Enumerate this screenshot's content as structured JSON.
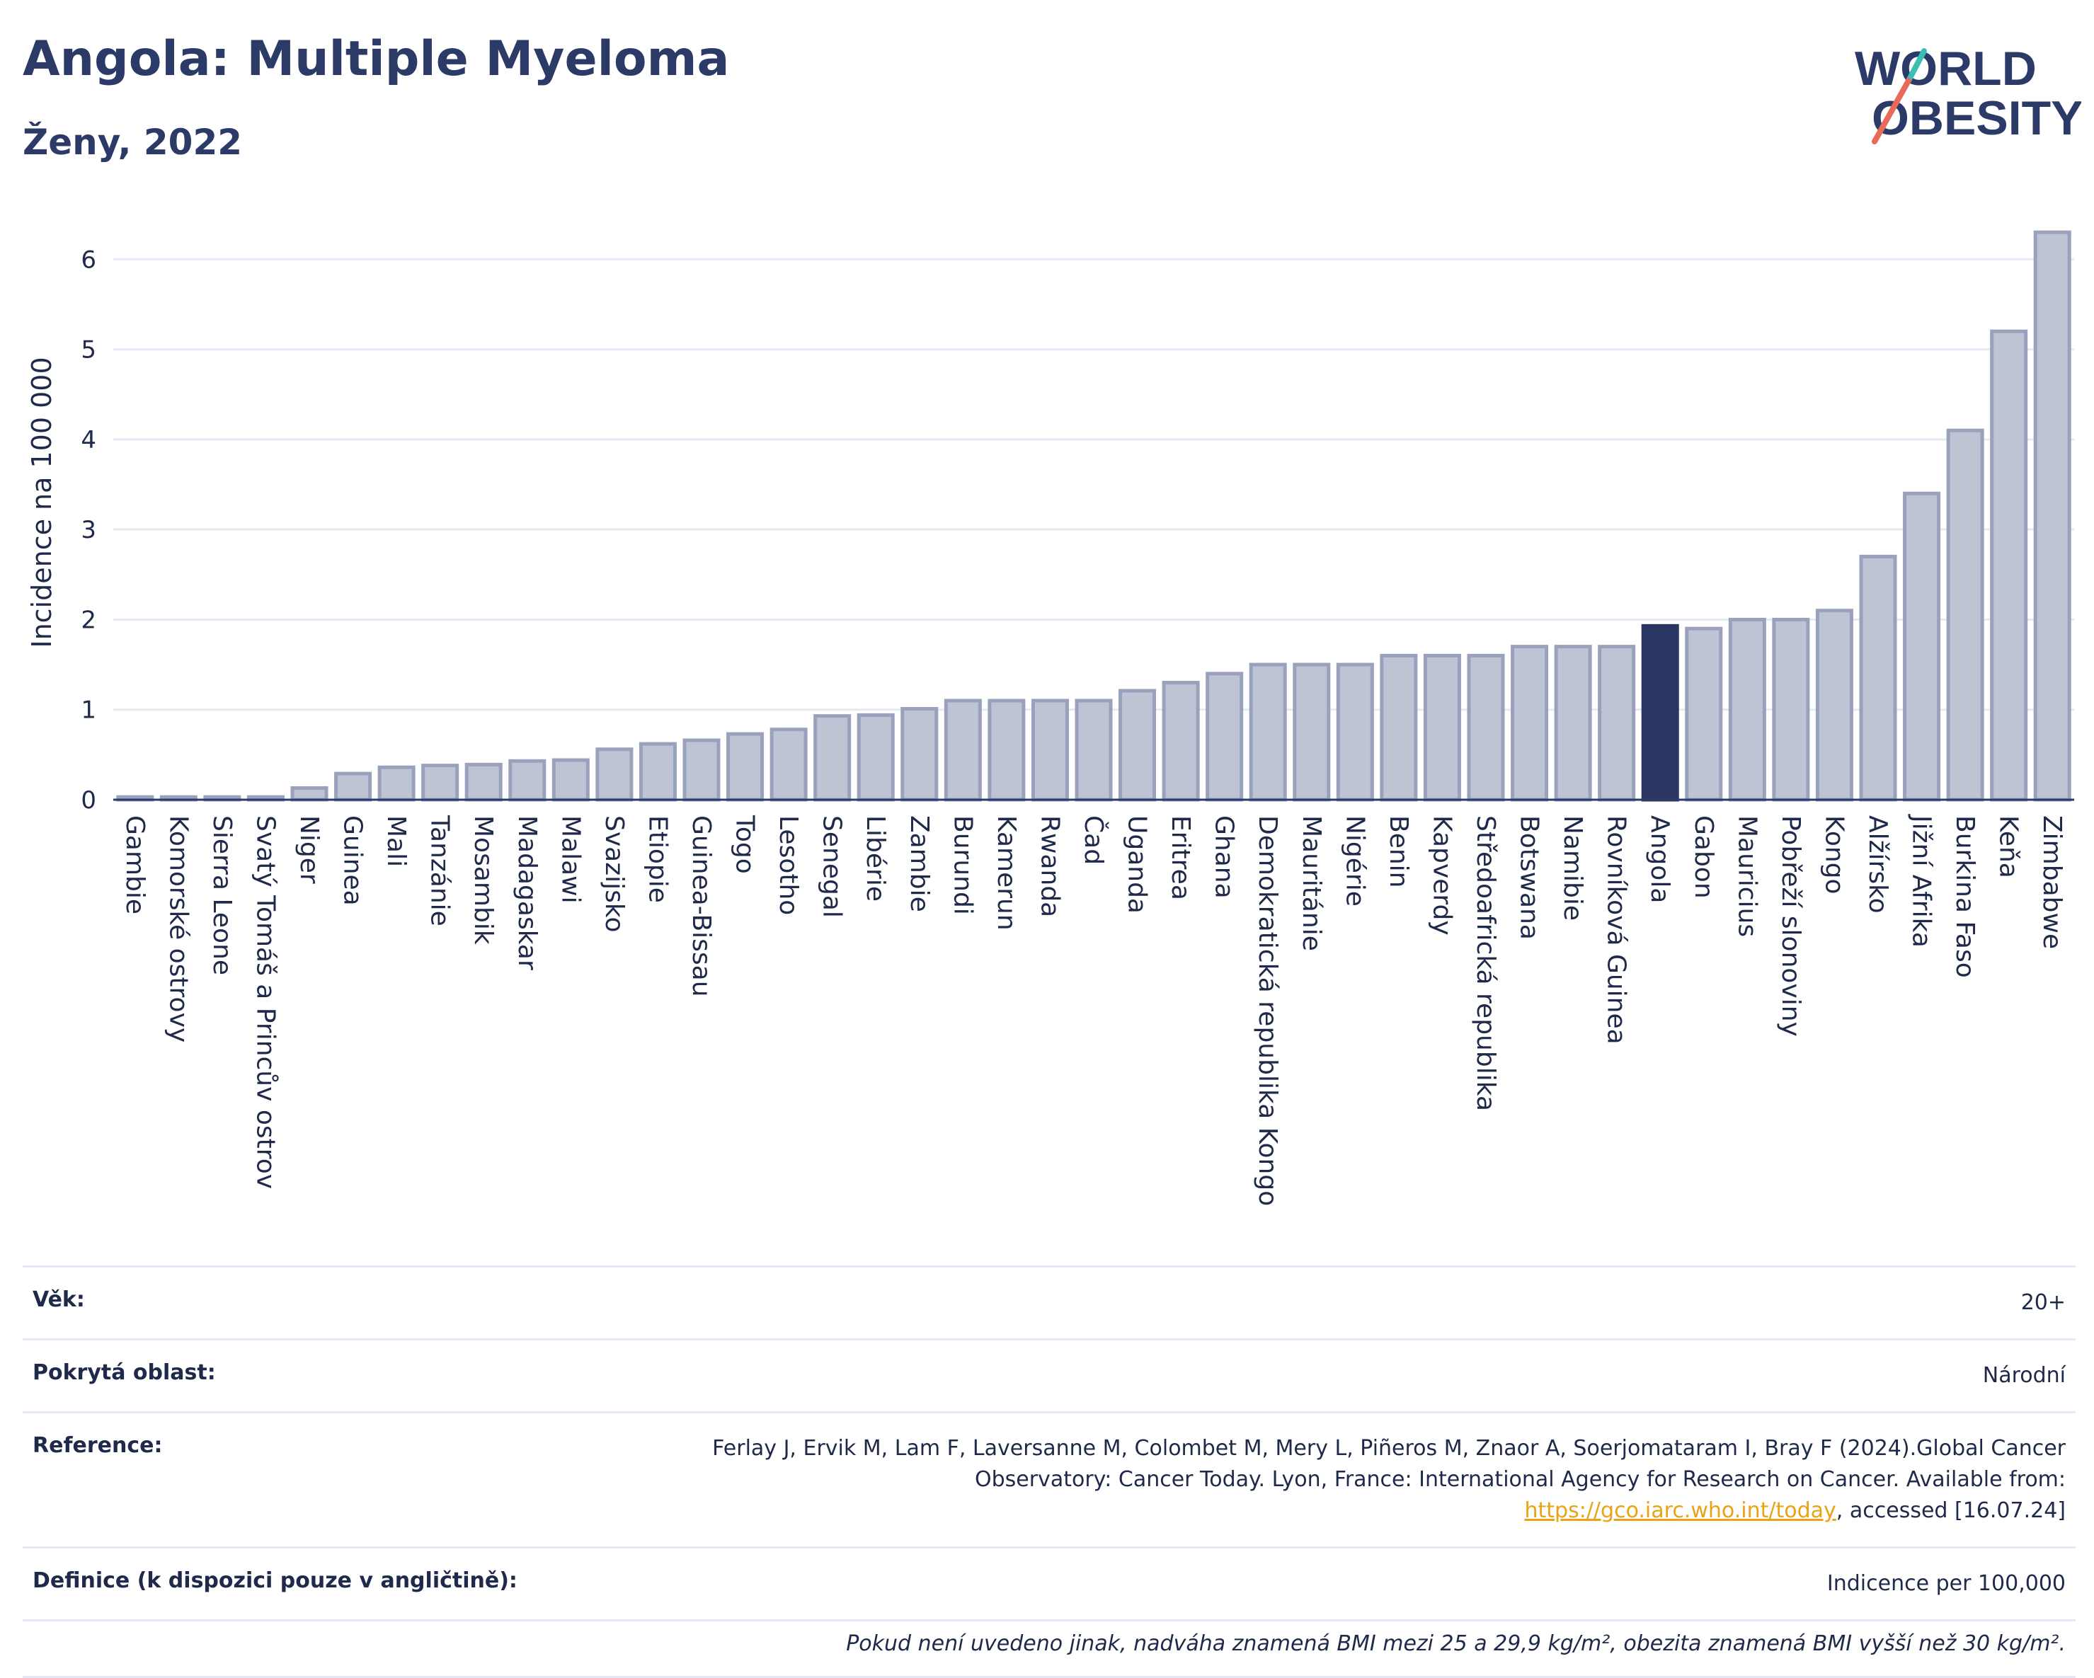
{
  "header": {
    "title": "Angola: Multiple Myeloma",
    "subtitle": "Ženy, 2022"
  },
  "logo": {
    "line1": "WORLD",
    "line2": "OBESITY"
  },
  "colors": {
    "highlight": "#2b3562",
    "bar": "#bfc4d4",
    "bar_stroke": "#9aa1bd",
    "axis": "#2b3a67",
    "grid": "#e6e9f3"
  },
  "chart_data": {
    "type": "bar",
    "ylabel": "Incidence na 100 000",
    "ylim": [
      0,
      6.6
    ],
    "yticks": [
      0,
      1,
      2,
      3,
      4,
      5,
      6
    ],
    "grid": true,
    "highlight": "Angola",
    "categories": [
      "Gambie",
      "Komorské ostrovy",
      "Sierra Leone",
      "Svatý Tomáš a Princův ostrov",
      "Niger",
      "Guinea",
      "Mali",
      "Tanzánie",
      "Mosambik",
      "Madagaskar",
      "Malawi",
      "Svazijsko",
      "Etiopie",
      "Guinea-Bissau",
      "Togo",
      "Lesotho",
      "Senegal",
      "Libérie",
      "Zambie",
      "Burundi",
      "Kamerun",
      "Rwanda",
      "Čad",
      "Uganda",
      "Eritrea",
      "Ghana",
      "Demokratická republika Kongo",
      "Mauritánie",
      "Nigérie",
      "Benin",
      "Kapverdy",
      "Středoafrická republika",
      "Botswana",
      "Namibie",
      "Rovníková Guinea",
      "Angola",
      "Gabon",
      "Mauricius",
      "Pobřeží slonoviny",
      "Kongo",
      "Alžírsko",
      "Jižní Afrika",
      "Burkina Faso",
      "Keňa",
      "Zimbabwe"
    ],
    "values": [
      0.03,
      0.03,
      0.03,
      0.03,
      0.13,
      0.29,
      0.36,
      0.38,
      0.39,
      0.43,
      0.44,
      0.56,
      0.62,
      0.66,
      0.73,
      0.78,
      0.93,
      0.94,
      1.01,
      1.1,
      1.1,
      1.1,
      1.1,
      1.21,
      1.3,
      1.4,
      1.5,
      1.5,
      1.5,
      1.6,
      1.6,
      1.6,
      1.7,
      1.7,
      1.7,
      1.93,
      1.9,
      2.0,
      2.0,
      2.1,
      2.7,
      3.4,
      4.1,
      5.2,
      6.3
    ]
  },
  "info": {
    "age_label": "Věk:",
    "age_value": "20+",
    "area_label": "Pokrytá oblast:",
    "area_value": "Národní",
    "ref_label": "Reference:",
    "ref_text": "Ferlay J, Ervik M, Lam F, Laversanne M, Colombet M, Mery L, Piñeros M, Znaor A, Soerjomataram I, Bray F (2024).Global Cancer Observatory: Cancer Today. Lyon, France: International Agency for Research on Cancer. Available from: ",
    "ref_link": "https://gco.iarc.who.int/today",
    "ref_after_link": ", accessed [16.07.24]",
    "def_label": "Definice (k dispozici pouze v angličtině):",
    "def_value": "Indicence per 100,000",
    "note": "Pokud není uvedeno jinak, nadváha znamená BMI mezi 25 a 29,9 kg/m², obezita znamená BMI vyšší než 30 kg/m²."
  }
}
